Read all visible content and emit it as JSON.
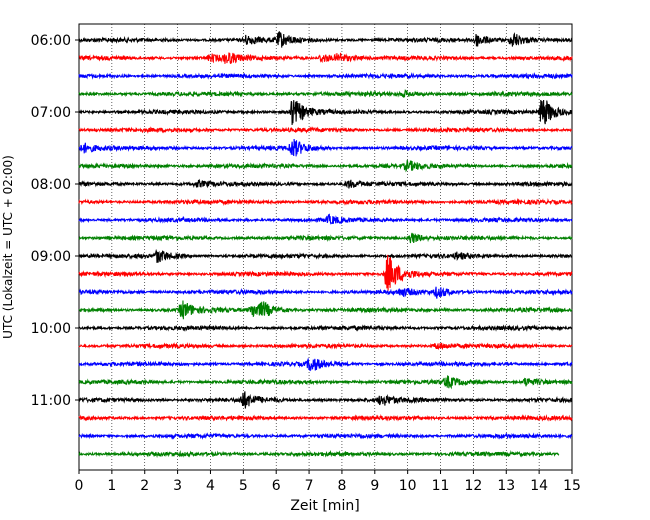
{
  "chart_data": {
    "type": "line",
    "title": "",
    "xlabel": "Zeit  [min]",
    "ylabel": "UTC (Lokalzeit = UTC + 02:00)",
    "xlim": [
      0,
      15
    ],
    "x_ticks": [
      "0",
      "1",
      "2",
      "3",
      "4",
      "5",
      "6",
      "7",
      "8",
      "9",
      "10",
      "11",
      "12",
      "13",
      "14",
      "15"
    ],
    "y_tick_labels": [
      "06:00",
      "07:00",
      "08:00",
      "09:00",
      "10:00",
      "11:00"
    ],
    "grid": "vertical dotted",
    "trace_interval_min": 15,
    "trace_colors": [
      "#000000",
      "#ff0000",
      "#0000ff",
      "#008000"
    ],
    "traces": [
      {
        "start": "06:00",
        "events": [
          {
            "t": 5.1,
            "a": 0.5
          },
          {
            "t": 6.1,
            "a": 0.8
          },
          {
            "t": 12.1,
            "a": 0.7
          },
          {
            "t": 13.2,
            "a": 0.9
          }
        ]
      },
      {
        "start": "06:15",
        "events": [
          {
            "t": 4.0,
            "a": 0.4
          },
          {
            "t": 4.5,
            "a": 0.6
          },
          {
            "t": 7.4,
            "a": 0.5
          },
          {
            "t": 7.9,
            "a": 0.5
          }
        ]
      },
      {
        "start": "06:30",
        "events": []
      },
      {
        "start": "06:45",
        "events": [
          {
            "t": 9.9,
            "a": 0.3
          }
        ]
      },
      {
        "start": "07:00",
        "events": [
          {
            "t": 6.5,
            "a": 1.6
          },
          {
            "t": 14.1,
            "a": 1.8
          }
        ]
      },
      {
        "start": "07:15",
        "events": []
      },
      {
        "start": "07:30",
        "events": [
          {
            "t": 0.15,
            "a": 0.5
          },
          {
            "t": 6.5,
            "a": 1.0
          }
        ]
      },
      {
        "start": "07:45",
        "events": [
          {
            "t": 10.0,
            "a": 0.5
          }
        ]
      },
      {
        "start": "08:00",
        "events": [
          {
            "t": 3.6,
            "a": 0.3
          },
          {
            "t": 8.2,
            "a": 0.4
          }
        ]
      },
      {
        "start": "08:15",
        "events": []
      },
      {
        "start": "08:30",
        "events": [
          {
            "t": 7.6,
            "a": 0.4
          }
        ]
      },
      {
        "start": "08:45",
        "events": [
          {
            "t": 10.1,
            "a": 0.6
          }
        ]
      },
      {
        "start": "09:00",
        "events": [
          {
            "t": 2.4,
            "a": 0.7
          },
          {
            "t": 11.5,
            "a": 0.3
          }
        ]
      },
      {
        "start": "09:15",
        "events": [
          {
            "t": 9.4,
            "a": 2.2
          }
        ]
      },
      {
        "start": "09:30",
        "events": [
          {
            "t": 9.8,
            "a": 0.4
          },
          {
            "t": 10.9,
            "a": 0.6
          }
        ]
      },
      {
        "start": "09:45",
        "events": [
          {
            "t": 3.15,
            "a": 1.0
          },
          {
            "t": 5.3,
            "a": 0.8
          },
          {
            "t": 5.6,
            "a": 0.6
          }
        ]
      },
      {
        "start": "10:00",
        "events": []
      },
      {
        "start": "10:15",
        "events": [
          {
            "t": 10.9,
            "a": 0.3
          }
        ]
      },
      {
        "start": "10:30",
        "events": [
          {
            "t": 7.05,
            "a": 0.8
          }
        ]
      },
      {
        "start": "10:45",
        "events": [
          {
            "t": 11.2,
            "a": 0.6
          },
          {
            "t": 13.6,
            "a": 0.5
          }
        ]
      },
      {
        "start": "11:00",
        "events": [
          {
            "t": 5.0,
            "a": 0.9
          },
          {
            "t": 9.2,
            "a": 0.6
          }
        ]
      },
      {
        "start": "11:15",
        "events": []
      },
      {
        "start": "11:30",
        "events": []
      },
      {
        "start": "11:45",
        "events": [],
        "end_min": 14.6
      }
    ]
  }
}
